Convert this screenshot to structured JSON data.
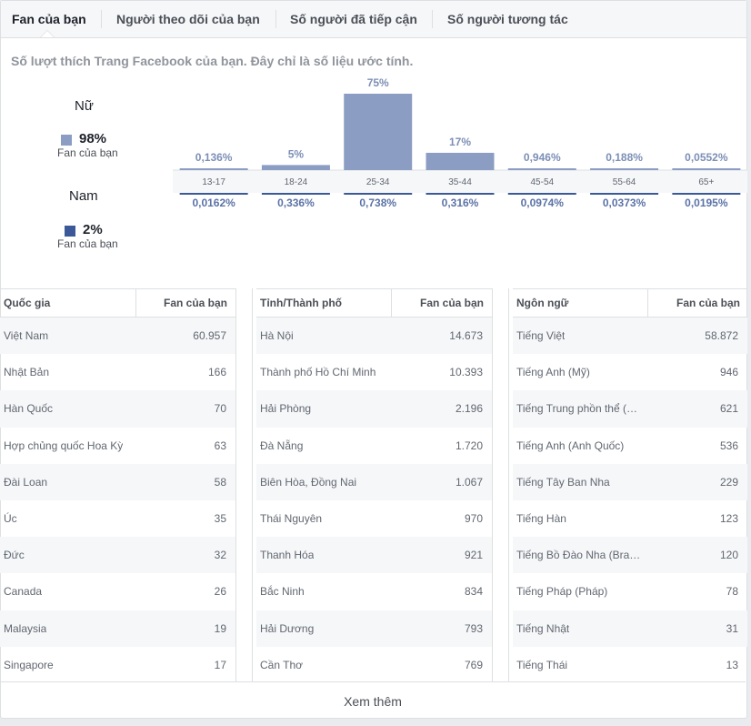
{
  "tabs": [
    {
      "label": "Fan của bạn"
    },
    {
      "label": "Người theo dõi của bạn"
    },
    {
      "label": "Số người đã tiếp cận"
    },
    {
      "label": "Số người tương tác"
    }
  ],
  "intro": "Số lượt thích Trang Facebook của bạn. Đây chỉ là số liệu ước tính.",
  "gender": {
    "female": {
      "label": "Nữ",
      "pct": "98%",
      "sub": "Fan của bạn",
      "color": "#8b9dc3"
    },
    "male": {
      "label": "Nam",
      "pct": "2%",
      "sub": "Fan của bạn",
      "color": "#3b5998"
    }
  },
  "chart_data": {
    "type": "bar",
    "categories": [
      "13-17",
      "18-24",
      "25-34",
      "35-44",
      "45-54",
      "55-64",
      "65+"
    ],
    "series": [
      {
        "name": "Nữ",
        "values": [
          0.136,
          5,
          75,
          17,
          0.946,
          0.188,
          0.0552
        ],
        "labels": [
          "0,136%",
          "5%",
          "75%",
          "17%",
          "0,946%",
          "0,188%",
          "0,0552%"
        ],
        "color": "#8b9dc3"
      },
      {
        "name": "Nam",
        "values": [
          0.0162,
          0.336,
          0.738,
          0.316,
          0.0974,
          0.0373,
          0.0195
        ],
        "labels": [
          "0,0162%",
          "0,336%",
          "0,738%",
          "0,316%",
          "0,0974%",
          "0,0373%",
          "0,0195%"
        ],
        "color": "#3b5998"
      }
    ],
    "ylim": [
      0,
      75
    ]
  },
  "tables": [
    {
      "col1": "Quốc gia",
      "col2": "Fan của bạn",
      "rows": [
        [
          "Việt Nam",
          "60.957"
        ],
        [
          "Nhật Bản",
          "166"
        ],
        [
          "Hàn Quốc",
          "70"
        ],
        [
          "Hợp chủng quốc Hoa Kỳ",
          "63"
        ],
        [
          "Đài Loan",
          "58"
        ],
        [
          "Úc",
          "35"
        ],
        [
          "Đức",
          "32"
        ],
        [
          "Canada",
          "26"
        ],
        [
          "Malaysia",
          "19"
        ],
        [
          "Singapore",
          "17"
        ]
      ]
    },
    {
      "col1": "Tỉnh/Thành phố",
      "col2": "Fan của bạn",
      "rows": [
        [
          "Hà Nội",
          "14.673"
        ],
        [
          "Thành phố Hồ Chí Minh",
          "10.393"
        ],
        [
          "Hải Phòng",
          "2.196"
        ],
        [
          "Đà Nẵng",
          "1.720"
        ],
        [
          "Biên Hòa, Đồng Nai",
          "1.067"
        ],
        [
          "Thái Nguyên",
          "970"
        ],
        [
          "Thanh Hóa",
          "921"
        ],
        [
          "Bắc Ninh",
          "834"
        ],
        [
          "Hải Dương",
          "793"
        ],
        [
          "Cần Thơ",
          "769"
        ]
      ]
    },
    {
      "col1": "Ngôn ngữ",
      "col2": "Fan của bạn",
      "rows": [
        [
          "Tiếng Việt",
          "58.872"
        ],
        [
          "Tiếng Anh (Mỹ)",
          "946"
        ],
        [
          "Tiếng Trung phồn thể (…",
          "621"
        ],
        [
          "Tiếng Anh (Anh Quốc)",
          "536"
        ],
        [
          "Tiếng Tây Ban Nha",
          "229"
        ],
        [
          "Tiếng Hàn",
          "123"
        ],
        [
          "Tiếng Bồ Đào Nha (Bra…",
          "120"
        ],
        [
          "Tiếng Pháp (Pháp)",
          "78"
        ],
        [
          "Tiếng Nhật",
          "31"
        ],
        [
          "Tiếng Thái",
          "13"
        ]
      ]
    }
  ],
  "see_more": "Xem thêm"
}
